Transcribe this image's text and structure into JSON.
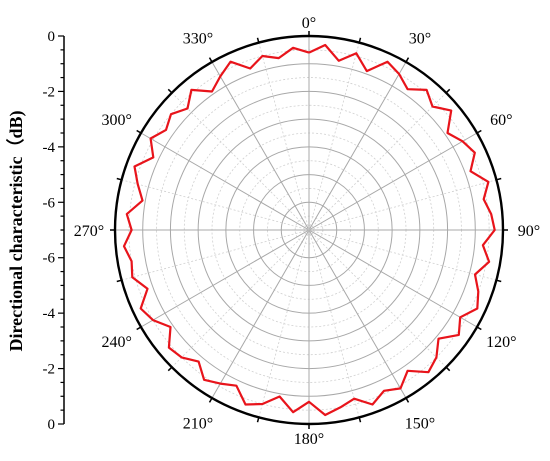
{
  "chart_data": {
    "type": "polar-line",
    "title": "",
    "ylabel": "Directional characteristic（dB)",
    "radial_range": [
      -7,
      0
    ],
    "radial_ticks_top": [
      "0",
      "-2",
      "-4",
      "-6"
    ],
    "radial_ticks_bottom": [
      "-6",
      "-4",
      "-2",
      "0"
    ],
    "angle_labels": [
      "0°",
      "30°",
      "60°",
      "90°",
      "120°",
      "150°",
      "180°",
      "210°",
      "240°",
      "270°",
      "300°",
      "330°"
    ],
    "grid": true,
    "series": [
      {
        "color": "#e8141b",
        "angles": [
          0,
          5,
          10,
          15,
          20,
          25,
          30,
          35,
          40,
          45,
          50,
          55,
          60,
          65,
          70,
          75,
          80,
          85,
          90,
          95,
          100,
          105,
          110,
          115,
          120,
          125,
          130,
          135,
          140,
          145,
          150,
          155,
          160,
          165,
          170,
          175,
          180,
          185,
          190,
          195,
          200,
          205,
          210,
          215,
          220,
          225,
          230,
          235,
          240,
          245,
          250,
          255,
          260,
          265,
          270,
          275,
          280,
          285,
          290,
          295,
          300,
          305,
          310,
          315,
          320,
          325,
          330,
          335,
          340,
          345,
          350,
          355
        ],
        "values": [
          -0.6,
          -0.3,
          -0.8,
          -0.4,
          -0.9,
          -0.3,
          -0.5,
          -0.8,
          -0.4,
          -0.7,
          -0.3,
          -0.9,
          -0.6,
          -0.4,
          -0.8,
          -0.3,
          -0.6,
          -0.4,
          -0.3,
          -0.7,
          -0.4,
          -0.8,
          -0.5,
          -0.3,
          -0.7,
          -0.4,
          -0.9,
          -0.5,
          -0.3,
          -0.8,
          -0.4,
          -0.6,
          -0.3,
          -0.7,
          -0.5,
          -0.3,
          -0.8,
          -0.4,
          -0.9,
          -0.5,
          -0.3,
          -0.8,
          -0.6,
          -0.4,
          -0.8,
          -0.5,
          -0.4,
          -0.9,
          -0.5,
          -0.3,
          -0.8,
          -0.4,
          -0.5,
          -0.3,
          -0.6,
          -0.4,
          -0.9,
          -0.6,
          -0.3,
          -0.8,
          -0.4,
          -0.7,
          -0.5,
          -0.8,
          -0.4,
          -0.9,
          -0.6,
          -0.3,
          -0.8,
          -0.5,
          -0.7,
          -0.4
        ]
      }
    ]
  }
}
